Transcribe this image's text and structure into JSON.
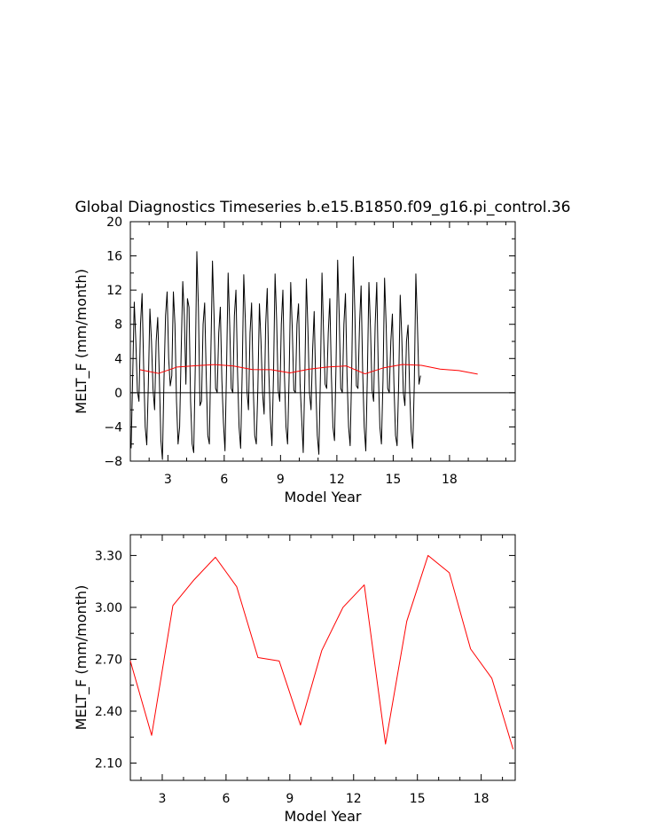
{
  "title": "Global Diagnostics Timeseries b.e15.B1850.f09_g16.pi_control.36",
  "colors": {
    "monthly": "#000000",
    "annual": "#ff0000",
    "axes": "#000000"
  },
  "chart_data": [
    {
      "type": "line",
      "xlabel": "Model Year",
      "ylabel": "MELT_F (mm/month)",
      "xlim": [
        1,
        21.5
      ],
      "ylim": [
        -8,
        20
      ],
      "xticks": [
        3,
        6,
        9,
        12,
        15,
        18
      ],
      "xtick_labels": [
        "3",
        "6",
        "9",
        "12",
        "15",
        "18"
      ],
      "yticks": [
        -8,
        -4,
        0,
        4,
        8,
        12,
        16,
        20
      ],
      "ytick_labels": [
        "−8",
        "−4",
        "0",
        "4",
        "8",
        "12",
        "16",
        "20"
      ],
      "zero_line": true,
      "grid": false,
      "series": [
        {
          "key": "monthly",
          "x_start": 1.0417,
          "x_step": 0.08333,
          "y": [
            -6.5,
            2.0,
            10.6,
            6.0,
            0.2,
            -1.0,
            8.0,
            11.6,
            3.0,
            -4.0,
            -6.1,
            1.0,
            9.8,
            6.0,
            0.4,
            -2.0,
            6.0,
            8.8,
            2.0,
            -5.5,
            -7.8,
            1.5,
            9.0,
            11.8,
            4.0,
            0.8,
            2.0,
            11.8,
            8.0,
            -1.0,
            -6.0,
            -4.0,
            5.0,
            13.0,
            9.0,
            1.0,
            11.0,
            10.0,
            -1.0,
            -6.0,
            -7.0,
            3.0,
            16.5,
            10.0,
            -1.5,
            -1.0,
            8.0,
            10.5,
            2.0,
            -5.0,
            -6.0,
            5.0,
            15.4,
            9.0,
            0.5,
            0.0,
            7.0,
            10.0,
            1.5,
            -3.5,
            -6.8,
            3.0,
            14.0,
            8.0,
            0.5,
            0.0,
            9.0,
            12.0,
            2.5,
            -4.0,
            -6.5,
            2.5,
            13.8,
            8.5,
            0.3,
            -2.0,
            7.0,
            10.5,
            1.0,
            -5.0,
            -6.0,
            0.5,
            10.4,
            6.0,
            0.0,
            -2.5,
            8.0,
            12.2,
            2.5,
            -3.0,
            -6.2,
            2.0,
            13.9,
            8.5,
            0.3,
            -1.0,
            8.0,
            12.0,
            2.0,
            -4.0,
            -6.0,
            2.0,
            12.9,
            7.5,
            0.3,
            0.0,
            8.0,
            10.4,
            1.0,
            -3.0,
            -7.0,
            1.5,
            13.3,
            7.5,
            0.0,
            -2.0,
            5.0,
            9.5,
            1.0,
            -5.0,
            -7.2,
            2.0,
            14.0,
            7.0,
            1.0,
            0.5,
            7.0,
            11.0,
            2.0,
            -4.0,
            -5.6,
            3.5,
            15.5,
            9.0,
            0.5,
            0.0,
            8.0,
            11.6,
            2.0,
            -4.0,
            -6.2,
            2.5,
            15.9,
            9.5,
            0.8,
            0.5,
            8.0,
            12.5,
            2.5,
            -4.0,
            -6.8,
            2.0,
            12.9,
            7.5,
            0.3,
            -1.0,
            8.0,
            12.9,
            2.5,
            -4.0,
            -6.0,
            1.5,
            13.4,
            8.0,
            0.5,
            0.0,
            6.0,
            9.2,
            1.0,
            -5.0,
            -6.2,
            1.0,
            11.4,
            6.5,
            0.0,
            -1.5,
            6.0,
            7.9,
            0.5,
            -4.5,
            -6.5,
            1.0,
            13.9,
            8.0,
            1.0,
            2.0
          ]
        },
        {
          "key": "annual",
          "x": [
            1.5,
            2.5,
            3.5,
            4.5,
            5.5,
            6.5,
            7.5,
            8.5,
            9.5,
            10.5,
            11.5,
            12.5,
            13.5,
            14.5,
            15.5,
            16.5,
            17.5,
            18.5,
            19.5
          ],
          "y": [
            2.69,
            2.26,
            3.01,
            3.16,
            3.29,
            3.12,
            2.71,
            2.69,
            2.32,
            2.75,
            3.0,
            3.13,
            2.21,
            2.92,
            3.3,
            3.2,
            2.76,
            2.59,
            2.18
          ]
        }
      ]
    },
    {
      "type": "line",
      "xlabel": "Model Year",
      "ylabel": "MELT_F (mm/month)",
      "xlim": [
        1.5,
        19.6
      ],
      "ylim": [
        2.0,
        3.42
      ],
      "xticks": [
        3,
        6,
        9,
        12,
        15,
        18
      ],
      "xtick_labels": [
        "3",
        "6",
        "9",
        "12",
        "15",
        "18"
      ],
      "yticks": [
        2.1,
        2.4,
        2.7,
        3.0,
        3.3
      ],
      "ytick_labels": [
        "2.10",
        "2.40",
        "2.70",
        "3.00",
        "3.30"
      ],
      "grid": false,
      "series": [
        {
          "key": "annual",
          "x": [
            1.5,
            2.5,
            3.5,
            4.5,
            5.5,
            6.5,
            7.5,
            8.5,
            9.5,
            10.5,
            11.5,
            12.5,
            13.5,
            14.5,
            15.5,
            16.5,
            17.5,
            18.5,
            19.5
          ],
          "y": [
            2.69,
            2.26,
            3.01,
            3.16,
            3.29,
            3.12,
            2.71,
            2.69,
            2.32,
            2.75,
            3.0,
            3.13,
            2.21,
            2.92,
            3.3,
            3.2,
            2.76,
            2.59,
            2.18
          ]
        }
      ]
    }
  ]
}
